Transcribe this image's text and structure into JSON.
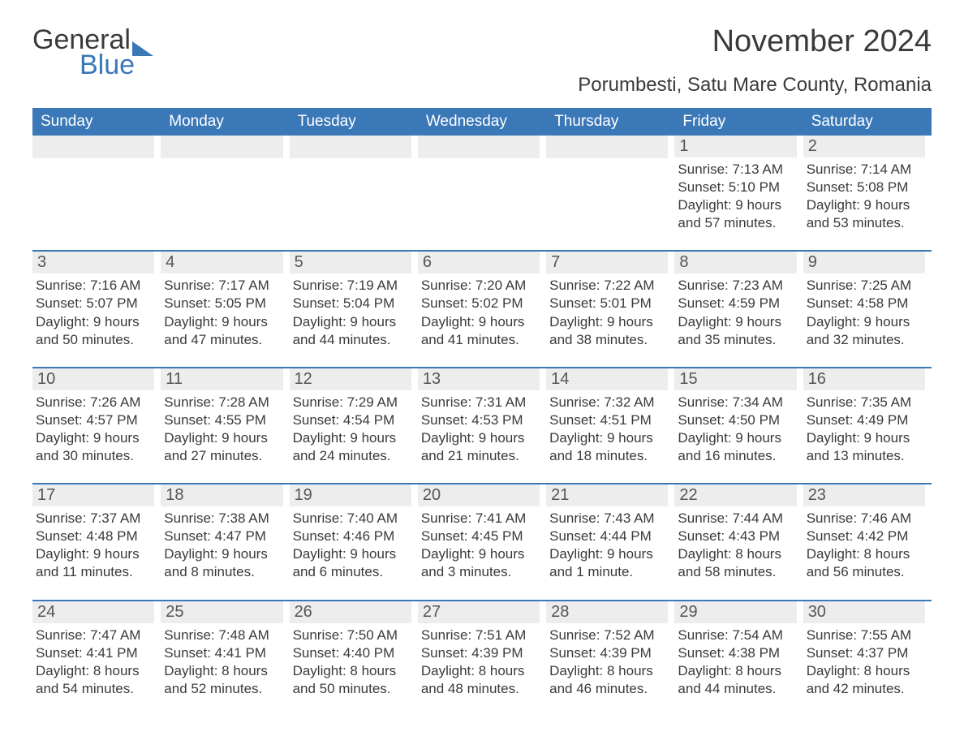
{
  "logo": {
    "text1": "General",
    "text2": "Blue",
    "triangle_color": "#3b78b8"
  },
  "title": {
    "month": "November 2024",
    "location": "Porumbesti, Satu Mare County, Romania"
  },
  "colors": {
    "header_bg": "#3b78b8",
    "header_text": "#ffffff",
    "daynum_bg": "#ededed",
    "week_border": "#3b78b8",
    "body_text": "#3a3a3a",
    "page_bg": "#ffffff"
  },
  "headers": [
    "Sunday",
    "Monday",
    "Tuesday",
    "Wednesday",
    "Thursday",
    "Friday",
    "Saturday"
  ],
  "weeks": [
    [
      {
        "blank": true
      },
      {
        "blank": true
      },
      {
        "blank": true
      },
      {
        "blank": true
      },
      {
        "blank": true
      },
      {
        "n": "1",
        "sunrise": "Sunrise: 7:13 AM",
        "sunset": "Sunset: 5:10 PM",
        "d1": "Daylight: 9 hours",
        "d2": "and 57 minutes."
      },
      {
        "n": "2",
        "sunrise": "Sunrise: 7:14 AM",
        "sunset": "Sunset: 5:08 PM",
        "d1": "Daylight: 9 hours",
        "d2": "and 53 minutes."
      }
    ],
    [
      {
        "n": "3",
        "sunrise": "Sunrise: 7:16 AM",
        "sunset": "Sunset: 5:07 PM",
        "d1": "Daylight: 9 hours",
        "d2": "and 50 minutes."
      },
      {
        "n": "4",
        "sunrise": "Sunrise: 7:17 AM",
        "sunset": "Sunset: 5:05 PM",
        "d1": "Daylight: 9 hours",
        "d2": "and 47 minutes."
      },
      {
        "n": "5",
        "sunrise": "Sunrise: 7:19 AM",
        "sunset": "Sunset: 5:04 PM",
        "d1": "Daylight: 9 hours",
        "d2": "and 44 minutes."
      },
      {
        "n": "6",
        "sunrise": "Sunrise: 7:20 AM",
        "sunset": "Sunset: 5:02 PM",
        "d1": "Daylight: 9 hours",
        "d2": "and 41 minutes."
      },
      {
        "n": "7",
        "sunrise": "Sunrise: 7:22 AM",
        "sunset": "Sunset: 5:01 PM",
        "d1": "Daylight: 9 hours",
        "d2": "and 38 minutes."
      },
      {
        "n": "8",
        "sunrise": "Sunrise: 7:23 AM",
        "sunset": "Sunset: 4:59 PM",
        "d1": "Daylight: 9 hours",
        "d2": "and 35 minutes."
      },
      {
        "n": "9",
        "sunrise": "Sunrise: 7:25 AM",
        "sunset": "Sunset: 4:58 PM",
        "d1": "Daylight: 9 hours",
        "d2": "and 32 minutes."
      }
    ],
    [
      {
        "n": "10",
        "sunrise": "Sunrise: 7:26 AM",
        "sunset": "Sunset: 4:57 PM",
        "d1": "Daylight: 9 hours",
        "d2": "and 30 minutes."
      },
      {
        "n": "11",
        "sunrise": "Sunrise: 7:28 AM",
        "sunset": "Sunset: 4:55 PM",
        "d1": "Daylight: 9 hours",
        "d2": "and 27 minutes."
      },
      {
        "n": "12",
        "sunrise": "Sunrise: 7:29 AM",
        "sunset": "Sunset: 4:54 PM",
        "d1": "Daylight: 9 hours",
        "d2": "and 24 minutes."
      },
      {
        "n": "13",
        "sunrise": "Sunrise: 7:31 AM",
        "sunset": "Sunset: 4:53 PM",
        "d1": "Daylight: 9 hours",
        "d2": "and 21 minutes."
      },
      {
        "n": "14",
        "sunrise": "Sunrise: 7:32 AM",
        "sunset": "Sunset: 4:51 PM",
        "d1": "Daylight: 9 hours",
        "d2": "and 18 minutes."
      },
      {
        "n": "15",
        "sunrise": "Sunrise: 7:34 AM",
        "sunset": "Sunset: 4:50 PM",
        "d1": "Daylight: 9 hours",
        "d2": "and 16 minutes."
      },
      {
        "n": "16",
        "sunrise": "Sunrise: 7:35 AM",
        "sunset": "Sunset: 4:49 PM",
        "d1": "Daylight: 9 hours",
        "d2": "and 13 minutes."
      }
    ],
    [
      {
        "n": "17",
        "sunrise": "Sunrise: 7:37 AM",
        "sunset": "Sunset: 4:48 PM",
        "d1": "Daylight: 9 hours",
        "d2": "and 11 minutes."
      },
      {
        "n": "18",
        "sunrise": "Sunrise: 7:38 AM",
        "sunset": "Sunset: 4:47 PM",
        "d1": "Daylight: 9 hours",
        "d2": "and 8 minutes."
      },
      {
        "n": "19",
        "sunrise": "Sunrise: 7:40 AM",
        "sunset": "Sunset: 4:46 PM",
        "d1": "Daylight: 9 hours",
        "d2": "and 6 minutes."
      },
      {
        "n": "20",
        "sunrise": "Sunrise: 7:41 AM",
        "sunset": "Sunset: 4:45 PM",
        "d1": "Daylight: 9 hours",
        "d2": "and 3 minutes."
      },
      {
        "n": "21",
        "sunrise": "Sunrise: 7:43 AM",
        "sunset": "Sunset: 4:44 PM",
        "d1": "Daylight: 9 hours",
        "d2": "and 1 minute."
      },
      {
        "n": "22",
        "sunrise": "Sunrise: 7:44 AM",
        "sunset": "Sunset: 4:43 PM",
        "d1": "Daylight: 8 hours",
        "d2": "and 58 minutes."
      },
      {
        "n": "23",
        "sunrise": "Sunrise: 7:46 AM",
        "sunset": "Sunset: 4:42 PM",
        "d1": "Daylight: 8 hours",
        "d2": "and 56 minutes."
      }
    ],
    [
      {
        "n": "24",
        "sunrise": "Sunrise: 7:47 AM",
        "sunset": "Sunset: 4:41 PM",
        "d1": "Daylight: 8 hours",
        "d2": "and 54 minutes."
      },
      {
        "n": "25",
        "sunrise": "Sunrise: 7:48 AM",
        "sunset": "Sunset: 4:41 PM",
        "d1": "Daylight: 8 hours",
        "d2": "and 52 minutes."
      },
      {
        "n": "26",
        "sunrise": "Sunrise: 7:50 AM",
        "sunset": "Sunset: 4:40 PM",
        "d1": "Daylight: 8 hours",
        "d2": "and 50 minutes."
      },
      {
        "n": "27",
        "sunrise": "Sunrise: 7:51 AM",
        "sunset": "Sunset: 4:39 PM",
        "d1": "Daylight: 8 hours",
        "d2": "and 48 minutes."
      },
      {
        "n": "28",
        "sunrise": "Sunrise: 7:52 AM",
        "sunset": "Sunset: 4:39 PM",
        "d1": "Daylight: 8 hours",
        "d2": "and 46 minutes."
      },
      {
        "n": "29",
        "sunrise": "Sunrise: 7:54 AM",
        "sunset": "Sunset: 4:38 PM",
        "d1": "Daylight: 8 hours",
        "d2": "and 44 minutes."
      },
      {
        "n": "30",
        "sunrise": "Sunrise: 7:55 AM",
        "sunset": "Sunset: 4:37 PM",
        "d1": "Daylight: 8 hours",
        "d2": "and 42 minutes."
      }
    ]
  ]
}
